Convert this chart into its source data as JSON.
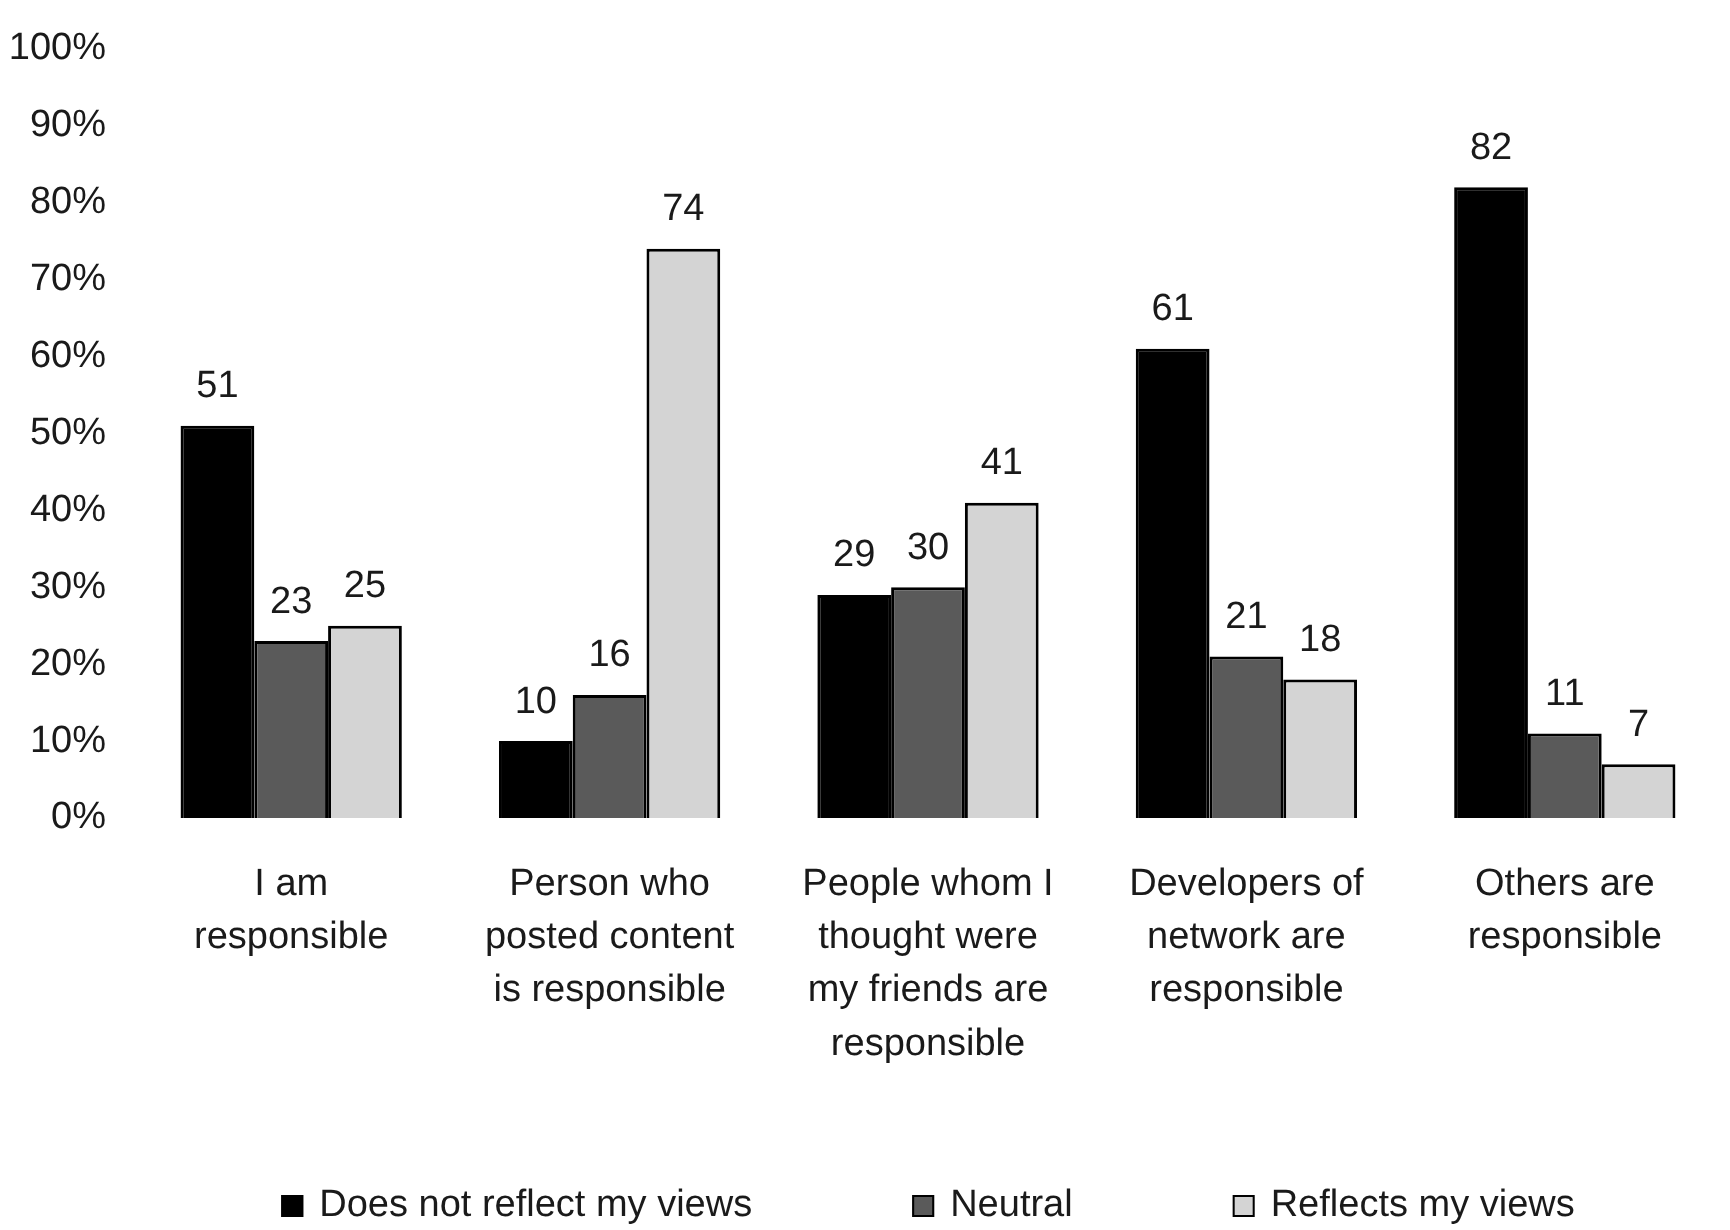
{
  "chart_data": {
    "type": "bar",
    "categories": [
      "I am responsible",
      "Person who posted content is responsible",
      "People whom I thought were my friends are responsible",
      "Developers of network are responsible",
      "Others are responsible"
    ],
    "series": [
      {
        "name": "Does not reflect my views",
        "color": "#000000",
        "values": [
          51,
          10,
          29,
          61,
          82
        ]
      },
      {
        "name": "Neutral",
        "color": "#5a5a5a",
        "values": [
          23,
          16,
          30,
          21,
          11
        ]
      },
      {
        "name": "Reflects my views",
        "color": "#d4d4d4",
        "values": [
          25,
          74,
          41,
          18,
          7
        ]
      }
    ],
    "ylim": [
      0,
      100
    ],
    "yticks": [
      {
        "value": 0,
        "label": "0%"
      },
      {
        "value": 10,
        "label": "10%"
      },
      {
        "value": 20,
        "label": "20%"
      },
      {
        "value": 30,
        "label": "30%"
      },
      {
        "value": 40,
        "label": "40%"
      },
      {
        "value": 50,
        "label": "50%"
      },
      {
        "value": 60,
        "label": "60%"
      },
      {
        "value": 70,
        "label": "70%"
      },
      {
        "value": 80,
        "label": "80%"
      },
      {
        "value": 90,
        "label": "90%"
      },
      {
        "value": 100,
        "label": "100%"
      }
    ],
    "data_labels": true,
    "legend": "bottom"
  }
}
